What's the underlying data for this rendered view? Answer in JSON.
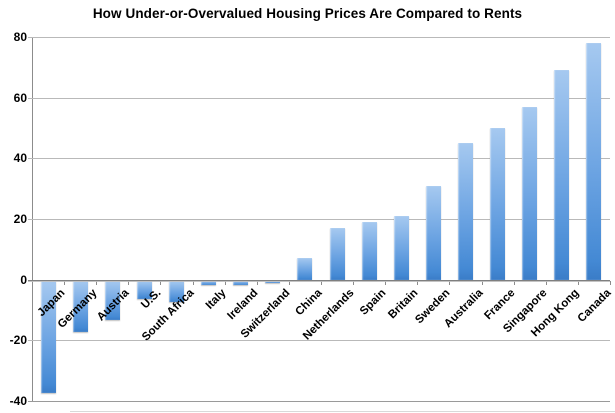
{
  "chart_data": {
    "type": "bar",
    "title": "How Under-or-Overvalued Housing Prices Are Compared to Rents",
    "categories": [
      "Japan",
      "Germany",
      "Austria",
      "U.S.",
      "South Africa",
      "Italy",
      "Ireland",
      "Switzerland",
      "China",
      "Netherlands",
      "Spain",
      "Britain",
      "Sweden",
      "Australia",
      "France",
      "Singapore",
      "Hong Kong",
      "Canada"
    ],
    "values": [
      -37,
      -17,
      -13,
      -6,
      -7,
      -1.5,
      -1.5,
      -0.5,
      7,
      17,
      19,
      21,
      31,
      45,
      50,
      57,
      69,
      78
    ],
    "xlabel": "",
    "ylabel": "",
    "ylim": [
      -40,
      80
    ],
    "ytick_interval": 20,
    "ytick_labels": [
      "80",
      "60",
      "40",
      "20",
      "0",
      "-20",
      "-40"
    ],
    "grid": true,
    "legend": false,
    "colors": {
      "bar_gradient_top": "#a6c9f0",
      "bar_gradient_bottom": "#4489d4",
      "gridline": "#b9b9b9",
      "zero_line": "#7f7f7f",
      "text": "#000000",
      "background": "#ffffff"
    }
  }
}
